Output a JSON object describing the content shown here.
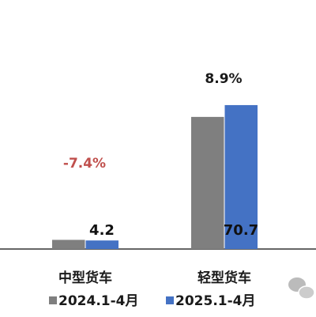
{
  "chart_data": {
    "type": "bar",
    "categories": [
      "中型货车",
      "轻型货车"
    ],
    "series": [
      {
        "name": "2024.1-4月",
        "color": "#7f7f7f",
        "values": [
          4.5,
          64.9
        ]
      },
      {
        "name": "2025.1-4月",
        "color": "#4472c4",
        "values": [
          4.2,
          70.7
        ]
      }
    ],
    "ylim": [
      0,
      80
    ],
    "annotations": [
      {
        "text": "-7.4%",
        "color": "#c0504d"
      },
      {
        "text": "8.9%",
        "color": "#1a1a1a"
      }
    ]
  }
}
